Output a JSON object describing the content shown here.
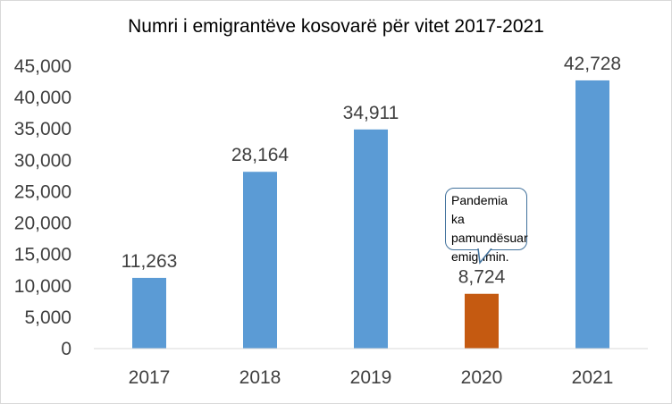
{
  "chart_data": {
    "type": "bar",
    "title": "Numri i emigrantëve kosovarë për vitet 2017-2021",
    "categories": [
      "2017",
      "2018",
      "2019",
      "2020",
      "2021"
    ],
    "values": [
      11263,
      28164,
      34911,
      8724,
      42728
    ],
    "value_labels": [
      "11,263",
      "28,164",
      "34,911",
      "8,724",
      "42,728"
    ],
    "bar_colors": [
      "#5b9bd5",
      "#5b9bd5",
      "#5b9bd5",
      "#c55a11",
      "#5b9bd5"
    ],
    "ylim": [
      0,
      45000
    ],
    "yticks": [
      0,
      5000,
      10000,
      15000,
      20000,
      25000,
      30000,
      35000,
      40000,
      45000
    ],
    "ytick_labels": [
      "0",
      "5,000",
      "10,000",
      "15,000",
      "20,000",
      "25,000",
      "30,000",
      "35,000",
      "40,000",
      "45,000"
    ],
    "grid": false,
    "legend": "none",
    "xlabel": "",
    "ylabel": "",
    "annotations": [
      {
        "category": "2020",
        "text": "Pandemia ka\npamundësuar\nemigrimin."
      }
    ]
  }
}
